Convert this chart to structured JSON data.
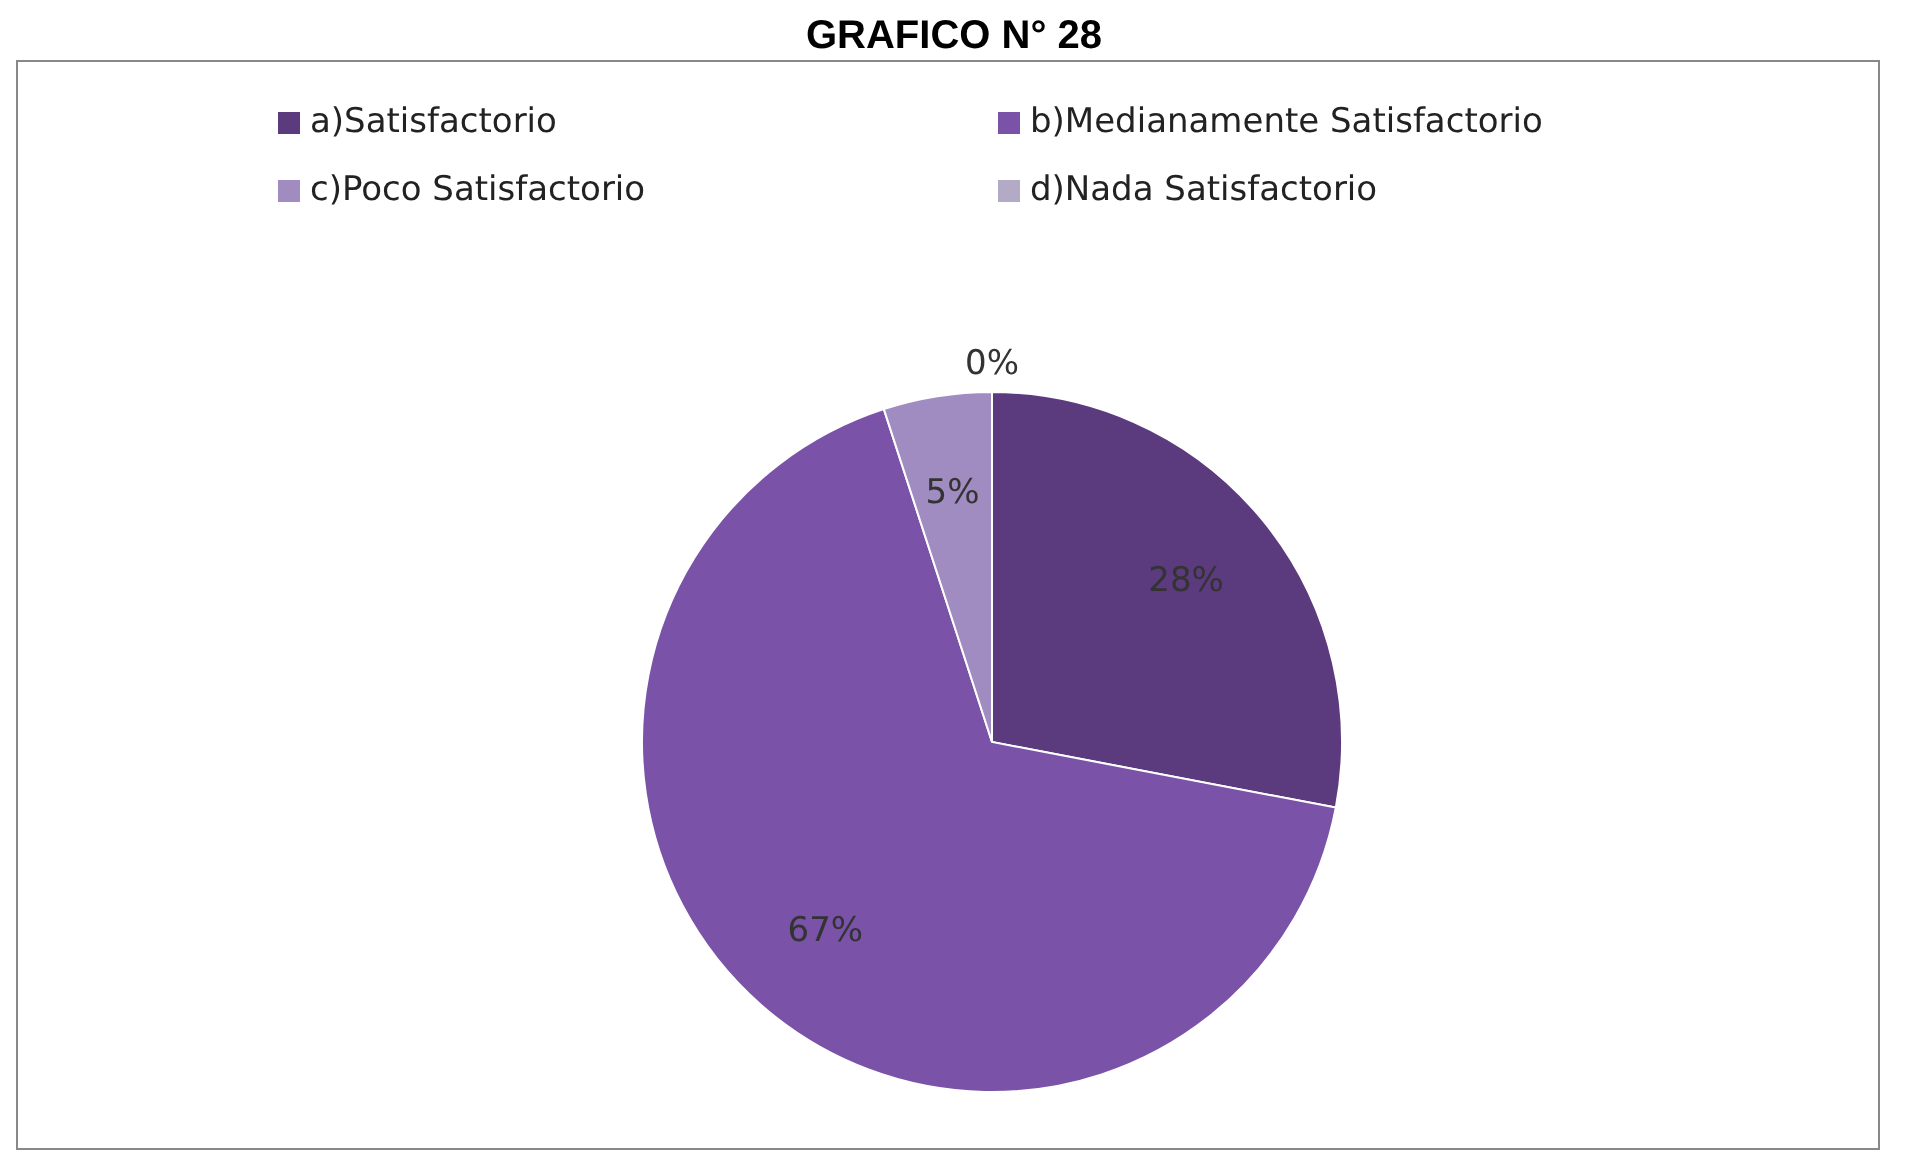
{
  "chart_data": {
    "type": "pie",
    "title": "GRAFICO N° 28",
    "categories": [
      "a)Satisfactorio",
      "b)Medianamente Satisfactorio",
      "c)Poco Satisfactorio",
      "d)Nada Satisfactorio"
    ],
    "values": [
      28,
      67,
      5,
      0
    ],
    "colors": [
      "#5b3a7e",
      "#7a52a8",
      "#a08cc0",
      "#b3aac6"
    ],
    "value_labels": [
      "28%",
      "67%",
      "5%",
      "0%"
    ],
    "legend": "top"
  }
}
